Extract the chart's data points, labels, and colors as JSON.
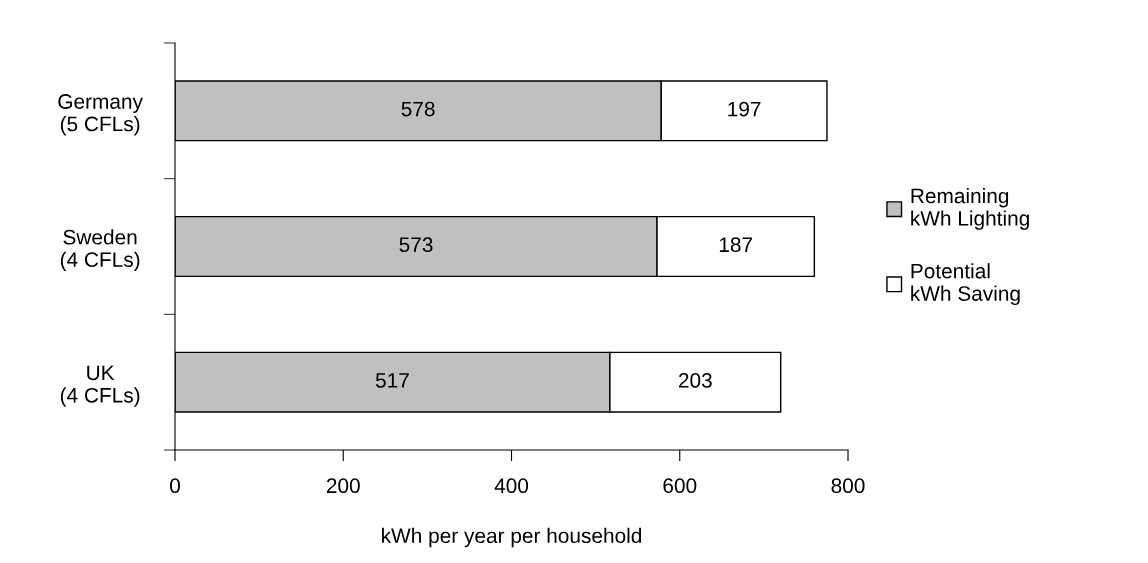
{
  "chart_data": {
    "type": "bar",
    "orientation": "horizontal",
    "stacked": true,
    "categories": [
      "Germany\n(5 CFLs)",
      "Sweden\n(4 CFLs)",
      "UK\n(4 CFLs)"
    ],
    "series": [
      {
        "name": "Remaining\nkWh Lighting",
        "color": "#c0c0c0",
        "values": [
          578,
          573,
          517
        ]
      },
      {
        "name": "Potential\nkWh Saving",
        "color": "#ffffff",
        "values": [
          197,
          187,
          203
        ]
      }
    ],
    "xlabel": "kWh per year per household",
    "xlim": [
      0,
      800
    ],
    "xticks": [
      0,
      200,
      400,
      600,
      800
    ],
    "data_labels": true,
    "grid": false,
    "legend": "right"
  }
}
